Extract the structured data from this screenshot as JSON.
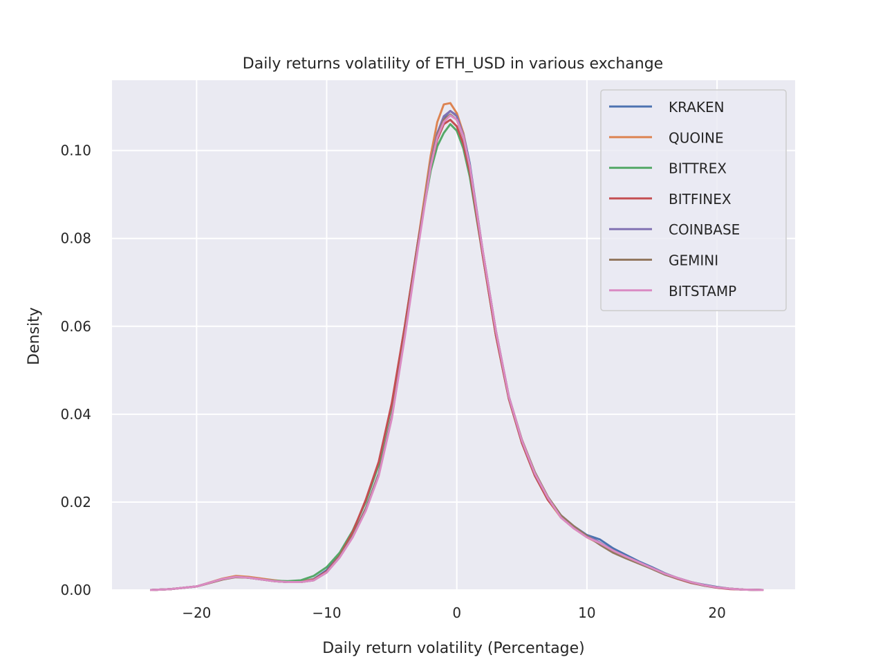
{
  "chart_data": {
    "type": "line",
    "title": "Daily returns volatility of ETH_USD in various exchange",
    "xlabel": "Daily return volatility (Percentage)",
    "ylabel": "Density",
    "xlim": [
      -26.5,
      26
    ],
    "ylim": [
      0,
      0.116
    ],
    "xticks": [
      -20,
      -10,
      0,
      10,
      20
    ],
    "xtick_labels": [
      "−20",
      "−10",
      "0",
      "10",
      "20"
    ],
    "yticks": [
      0,
      0.02,
      0.04,
      0.06,
      0.08,
      0.1
    ],
    "ytick_labels": [
      "0.00",
      "0.02",
      "0.04",
      "0.06",
      "0.08",
      "0.10"
    ],
    "grid": true,
    "background": "#eaeaf2",
    "legend_position": "upper right",
    "x": [
      -23.5,
      -22,
      -20,
      -18,
      -17,
      -16,
      -15,
      -14,
      -13,
      -12,
      -11,
      -10,
      -9,
      -8,
      -7,
      -6,
      -5,
      -4,
      -3,
      -2,
      -1.5,
      -1,
      -0.5,
      0,
      0.5,
      1,
      2,
      3,
      4,
      5,
      6,
      7,
      8,
      9,
      10,
      11,
      12,
      13,
      14,
      15,
      16,
      17,
      18,
      19,
      20,
      21,
      22,
      23.5
    ],
    "series": [
      {
        "name": "KRAKEN",
        "color": "#4c72b0",
        "values": [
          0,
          0.0002,
          0.0008,
          0.0025,
          0.003,
          0.0028,
          0.0024,
          0.002,
          0.0018,
          0.0019,
          0.0025,
          0.0045,
          0.008,
          0.0125,
          0.0185,
          0.0265,
          0.0395,
          0.058,
          0.078,
          0.097,
          0.1035,
          0.1075,
          0.109,
          0.108,
          0.104,
          0.097,
          0.077,
          0.059,
          0.044,
          0.034,
          0.0265,
          0.021,
          0.017,
          0.0145,
          0.0125,
          0.0115,
          0.0095,
          0.008,
          0.0065,
          0.0052,
          0.0038,
          0.0027,
          0.0018,
          0.0012,
          0.0007,
          0.0003,
          0.0001,
          0
        ]
      },
      {
        "name": "QUOINE",
        "color": "#dd8452",
        "values": [
          0,
          0.0002,
          0.0008,
          0.0026,
          0.0032,
          0.003,
          0.0026,
          0.0022,
          0.0019,
          0.0019,
          0.0024,
          0.0042,
          0.0078,
          0.0122,
          0.0182,
          0.0262,
          0.0392,
          0.058,
          0.079,
          0.099,
          0.1065,
          0.1105,
          0.1108,
          0.1085,
          0.104,
          0.096,
          0.076,
          0.058,
          0.0435,
          0.0335,
          0.026,
          0.0205,
          0.0165,
          0.014,
          0.012,
          0.0105,
          0.009,
          0.0075,
          0.0062,
          0.005,
          0.0037,
          0.0027,
          0.0018,
          0.0011,
          0.0006,
          0.0003,
          0.0001,
          0
        ]
      },
      {
        "name": "BITTREX",
        "color": "#55a868",
        "values": [
          0,
          0.0002,
          0.0008,
          0.0024,
          0.003,
          0.0028,
          0.0024,
          0.0021,
          0.002,
          0.0022,
          0.0032,
          0.0052,
          0.0085,
          0.0135,
          0.02,
          0.0285,
          0.042,
          0.06,
          0.079,
          0.0955,
          0.101,
          0.104,
          0.106,
          0.1045,
          0.1005,
          0.094,
          0.076,
          0.058,
          0.0435,
          0.0335,
          0.026,
          0.0205,
          0.0168,
          0.0143,
          0.0123,
          0.0108,
          0.009,
          0.0075,
          0.0062,
          0.005,
          0.0037,
          0.0027,
          0.0018,
          0.0011,
          0.0006,
          0.0003,
          0.0001,
          0
        ]
      },
      {
        "name": "BITFINEX",
        "color": "#c44e52",
        "values": [
          0,
          0.0002,
          0.0008,
          0.0024,
          0.003,
          0.0028,
          0.0024,
          0.002,
          0.0018,
          0.0018,
          0.0023,
          0.0042,
          0.0078,
          0.0132,
          0.0205,
          0.0292,
          0.0425,
          0.06,
          0.079,
          0.0965,
          0.1025,
          0.106,
          0.107,
          0.1055,
          0.1015,
          0.095,
          0.076,
          0.058,
          0.0435,
          0.0335,
          0.026,
          0.0205,
          0.0168,
          0.0143,
          0.0123,
          0.0105,
          0.009,
          0.0075,
          0.0062,
          0.0048,
          0.0035,
          0.0025,
          0.0016,
          0.001,
          0.0005,
          0.0002,
          0.0001,
          0
        ]
      },
      {
        "name": "COINBASE",
        "color": "#8172b3",
        "values": [
          0,
          0.0002,
          0.0008,
          0.0025,
          0.003,
          0.0028,
          0.0024,
          0.002,
          0.0018,
          0.0018,
          0.0022,
          0.004,
          0.0075,
          0.0122,
          0.0182,
          0.0262,
          0.0392,
          0.0578,
          0.078,
          0.0975,
          0.104,
          0.1078,
          0.109,
          0.1078,
          0.1035,
          0.0965,
          0.077,
          0.059,
          0.044,
          0.034,
          0.0265,
          0.021,
          0.0168,
          0.0143,
          0.0123,
          0.0108,
          0.009,
          0.0076,
          0.0063,
          0.005,
          0.0037,
          0.0027,
          0.0018,
          0.0011,
          0.0006,
          0.0003,
          0.0001,
          0
        ]
      },
      {
        "name": "GEMINI",
        "color": "#937860",
        "values": [
          0,
          0.0002,
          0.0008,
          0.0024,
          0.0029,
          0.0028,
          0.0024,
          0.002,
          0.0018,
          0.0018,
          0.0022,
          0.004,
          0.0076,
          0.0124,
          0.0184,
          0.0264,
          0.0394,
          0.058,
          0.0782,
          0.097,
          0.1035,
          0.107,
          0.1082,
          0.107,
          0.103,
          0.0962,
          0.077,
          0.059,
          0.044,
          0.0342,
          0.0268,
          0.0212,
          0.017,
          0.0145,
          0.0123,
          0.0103,
          0.0085,
          0.0072,
          0.006,
          0.0048,
          0.0035,
          0.0026,
          0.0017,
          0.001,
          0.0006,
          0.0003,
          0.0001,
          0
        ]
      },
      {
        "name": "BITSTAMP",
        "color": "#da8bc3",
        "values": [
          0,
          0.0002,
          0.0008,
          0.0025,
          0.003,
          0.0028,
          0.0024,
          0.002,
          0.0018,
          0.0018,
          0.0022,
          0.004,
          0.0074,
          0.012,
          0.018,
          0.026,
          0.039,
          0.0575,
          0.0775,
          0.0965,
          0.103,
          0.1065,
          0.108,
          0.107,
          0.1032,
          0.0965,
          0.077,
          0.059,
          0.044,
          0.034,
          0.0265,
          0.021,
          0.0165,
          0.014,
          0.012,
          0.0107,
          0.009,
          0.0076,
          0.0063,
          0.005,
          0.0037,
          0.0027,
          0.0018,
          0.0011,
          0.0006,
          0.0003,
          0.0001,
          0
        ]
      }
    ]
  }
}
